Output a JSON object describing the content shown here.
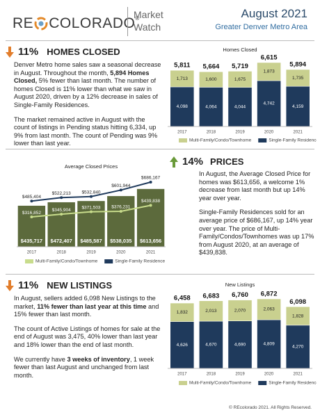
{
  "header": {
    "logo": {
      "left": "RE",
      "right": "COLORADO",
      "mark": "®"
    },
    "product": [
      "Market",
      "Watch"
    ],
    "month": "August 2021",
    "area": "Greater Denver Metro Area"
  },
  "sections": [
    {
      "change": "11%",
      "title": "HOMES CLOSED",
      "paragraphs": [
        [
          "Denver Metro home sales saw a seasonal decrease in August. Throughout the month, ",
          "5,894 Homes Closed,",
          " 5% fewer than last month. The number of homes Closed is 11% lower than what we saw in August 2020, driven by a 12% decrease in sales of Single-Family Residences."
        ],
        [
          "The market remained active in August with the count of listings in Pending status hitting 6,334, up 9% from last month. The count of Pending was 9% lower than last year."
        ]
      ]
    },
    {
      "change": "14%",
      "title": "PRICES",
      "paragraphs": [
        [
          "In August, the Average Closed Price for homes was $613,656, a welcome 1% decrease from last month but up 14% year over year."
        ],
        [
          "Single-Family Residences sold for an average price of $686,167, up 14% year over year. The price of Multi-Family/Condos/Townhomes was up 17% from August 2020, at an average of $439,838."
        ]
      ]
    },
    {
      "change": "11%",
      "title": "NEW LISTINGS",
      "paragraphs": [
        [
          "In August, sellers added 6,098 New Listings to the market, ",
          "11% fewer than last year at this time",
          " and 15% fewer than last month."
        ],
        [
          "The count of Active Listings of homes for sale at the end of August was 3,475, 40% lower than last year and 18% lower than the end of last month."
        ],
        [
          "We currently have ",
          "3 weeks of inventory",
          ", 1 week fewer than last August and unchanged from last month."
        ]
      ]
    }
  ],
  "chart_data": [
    {
      "type": "stacked_bar",
      "title": "Homes Closed",
      "categories": [
        "2017",
        "2018",
        "2019",
        "2020",
        "2021"
      ],
      "series": [
        {
          "name": "Single-Family Residence",
          "color": "#1f3a5c",
          "values": [
            4098,
            4064,
            4044,
            4742,
            4159
          ],
          "value_labels": [
            "4,098",
            "4,064",
            "4,044",
            "4,742",
            "4,159"
          ]
        },
        {
          "name": "Multi-Family/Condo/Townhome",
          "color": "#c9d08f",
          "values": [
            1713,
            1600,
            1675,
            1873,
            1735
          ],
          "value_labels": [
            "1,713",
            "1,600",
            "1,675",
            "1,873",
            "1,735"
          ]
        }
      ],
      "totals": [
        5811,
        5664,
        5719,
        6615,
        5894
      ],
      "total_labels": [
        "5,811",
        "5,664",
        "5,719",
        "6,615",
        "5,894"
      ]
    },
    {
      "type": "bar_line",
      "title": "Average Closed Prices",
      "categories": [
        "2017",
        "2018",
        "2019",
        "2020",
        "2021"
      ],
      "values": [
        435717,
        472407,
        485587,
        538035,
        613656
      ],
      "value_labels": [
        "$435,717",
        "$472,407",
        "$485,587",
        "$538,035",
        "$613,656"
      ],
      "color": "#5c6a3c",
      "series": [
        {
          "name": "Multi-Family/Condo/Townhome",
          "color": "#c8dc8c",
          "values": [
            316852,
            345904,
            371503,
            376231,
            439838
          ],
          "value_labels": [
            "$316,852",
            "$345,904",
            "$371,503",
            "$376,231",
            "$439,838"
          ]
        },
        {
          "name": "Single-Family Residence",
          "color": "#1f3a5c",
          "values": [
            485404,
            522213,
            532840,
            601944,
            686167
          ],
          "value_labels": [
            "$485,404",
            "$522,213",
            "$532,840",
            "$601,944",
            "$686,167"
          ]
        }
      ]
    },
    {
      "type": "stacked_bar",
      "title": "New Listings",
      "categories": [
        "2017",
        "2018",
        "2019",
        "2020",
        "2021"
      ],
      "series": [
        {
          "name": "Single-Family Residence",
          "color": "#1f3a5c",
          "values": [
            4626,
            4670,
            4690,
            4809,
            4270
          ],
          "value_labels": [
            "4,626",
            "4,670",
            "4,690",
            "4,809",
            "4,270"
          ]
        },
        {
          "name": "Multi-Family/Condo/Townhome",
          "color": "#c9d08f",
          "values": [
            1832,
            2013,
            2070,
            2063,
            1828
          ],
          "value_labels": [
            "1,832",
            "2,013",
            "2,070",
            "2,063",
            "1,828"
          ]
        }
      ],
      "totals": [
        6458,
        6683,
        6760,
        6872,
        6098
      ],
      "total_labels": [
        "6,458",
        "6,683",
        "6,760",
        "6,872",
        "6,098"
      ]
    }
  ],
  "footer": "© REcolorado 2021. All Rights Reserved."
}
